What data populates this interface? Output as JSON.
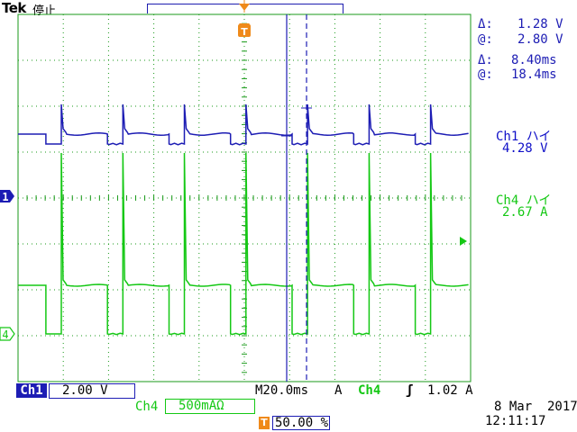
{
  "header": {
    "brand": "Tek",
    "status": "停止",
    "trigger_marker": "T"
  },
  "cursor_readout": {
    "voltage_delta_label": "Δ:",
    "voltage_delta": "1.28 V",
    "voltage_at_label": "@:",
    "voltage_at": "2.80 V",
    "time_delta_label": "Δ:",
    "time_delta": "8.40ms",
    "time_at_label": "@:",
    "time_at": "18.4ms"
  },
  "channels": {
    "ch1": {
      "label": "Ch1 ハイ",
      "value": "4.28 V",
      "marker": "1",
      "scale_label": "Ch1",
      "scale": "2.00 V",
      "color": "#1d1db4"
    },
    "ch4": {
      "label": "Ch4 ハイ",
      "value": "2.67 A",
      "marker": "4",
      "scale_label": "Ch4",
      "scale": "500mAΩ",
      "color": "#14c814"
    }
  },
  "bottom_bar": {
    "timebase": "M20.0ms",
    "trigger_mode": "A",
    "trigger_source": "Ch4",
    "trigger_slope": "ʃ",
    "trigger_level": "1.02 A",
    "trigger_position_label": "T",
    "trigger_position": "50.00 %"
  },
  "datetime": {
    "date": "8 Mar  2017",
    "time": "12:11:17"
  },
  "waveform": {
    "period_ms": 27.2,
    "duty_high_fraction": 0.75,
    "ch1_high_v": 4.28,
    "ch1_low_v": 2.9,
    "ch4_high_a": 2.67,
    "ch4_low_a": 0.0
  }
}
